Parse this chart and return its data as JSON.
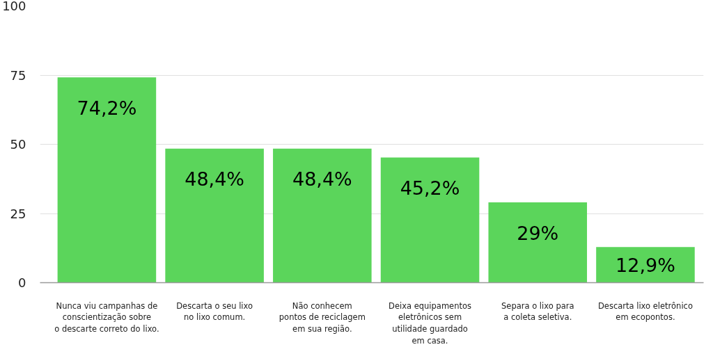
{
  "chart_data": {
    "type": "bar",
    "categories": [
      "Nunca viu campanhas de\nconscientização sobre\no descarte correto do lixo.",
      "Descarta o seu lixo\nno lixo comum.",
      "Não conhecem\npontos de reciclagem\nem sua região.",
      "Deixa equipamentos\neletrônicos sem\nutilidade guardado\nem casa.",
      "Separa o lixo para\na coleta seletiva.",
      "Descarta lixo eletrônico\nem ecopontos."
    ],
    "values": [
      74.2,
      48.4,
      48.4,
      45.2,
      29,
      12.9
    ],
    "value_labels": [
      "74,2%",
      "48,4%",
      "48,4%",
      "45,2%",
      "29%",
      "12,9%"
    ],
    "color": "#5bd55b",
    "ylim": [
      0,
      100
    ],
    "yticks": [
      0,
      25,
      50,
      75,
      100
    ],
    "grid": "y"
  }
}
